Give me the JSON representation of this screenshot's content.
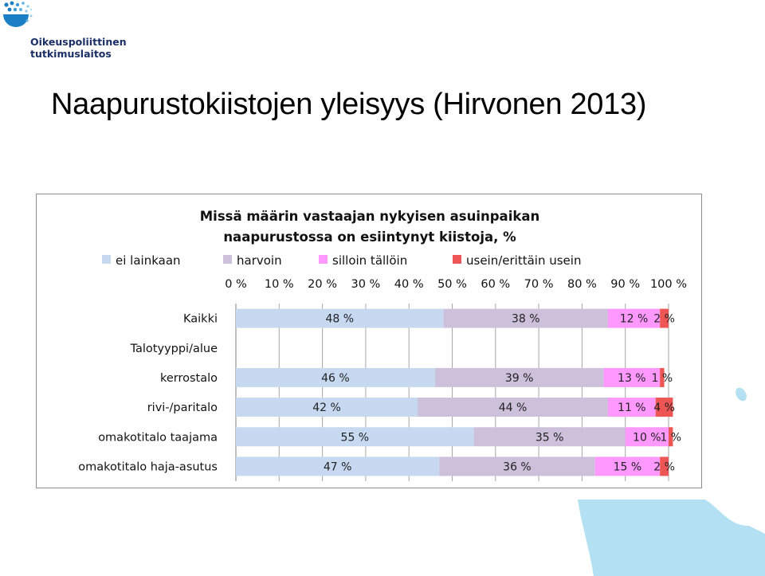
{
  "logo": {
    "line1": "Oikeuspoliittinen",
    "line2": "tutkimuslaitos"
  },
  "slide": {
    "title": "Naapurustokiistojen yleisyys  (Hirvonen 2013)"
  },
  "colors": {
    "ei lainkaan": "#c6d9f1",
    "harvoin": "#ccc0da",
    "silloin tällöin": "#ff99ff",
    "usein/erittäin usein": "#ee5555",
    "brand": "#1a7fc4",
    "deco": "#b3e0f2"
  },
  "chart_data": {
    "type": "bar",
    "orientation": "horizontal",
    "stacked": true,
    "title": [
      "Missä määrin vastaajan nykyisen asuinpaikan",
      "naapurustossa on esiintynyt kiistoja, %"
    ],
    "legend_position": "top",
    "xlim": [
      0,
      100
    ],
    "x_ticks": [
      "0 %",
      "10 %",
      "20 %",
      "30 %",
      "40 %",
      "50 %",
      "60 %",
      "70 %",
      "80 %",
      "90 %",
      "100 %"
    ],
    "grid": true,
    "categories": [
      "Kaikki",
      "Talotyyppi/alue",
      "kerrostalo",
      "rivi-/paritalo",
      "omakotitalo taajama",
      "omakotitalo haja-asutus"
    ],
    "series": [
      {
        "name": "ei lainkaan",
        "values": [
          48,
          null,
          46,
          42,
          55,
          47
        ],
        "labels": [
          "48 %",
          "",
          "46 %",
          "42 %",
          "55 %",
          "47 %"
        ]
      },
      {
        "name": "harvoin",
        "values": [
          38,
          null,
          39,
          44,
          35,
          36
        ],
        "labels": [
          "38 %",
          "",
          "39 %",
          "44 %",
          "35 %",
          "36 %"
        ]
      },
      {
        "name": "silloin tällöin",
        "values": [
          12,
          null,
          13,
          11,
          10,
          15
        ],
        "labels": [
          "12 %",
          "",
          "13 %",
          "11 %",
          "10 %",
          "15 %"
        ]
      },
      {
        "name": "usein/erittäin usein",
        "values": [
          2,
          null,
          1,
          4,
          1,
          2
        ],
        "labels": [
          "2 %",
          "",
          "1 %",
          "4 %",
          "1 %",
          "2 %"
        ]
      }
    ]
  }
}
